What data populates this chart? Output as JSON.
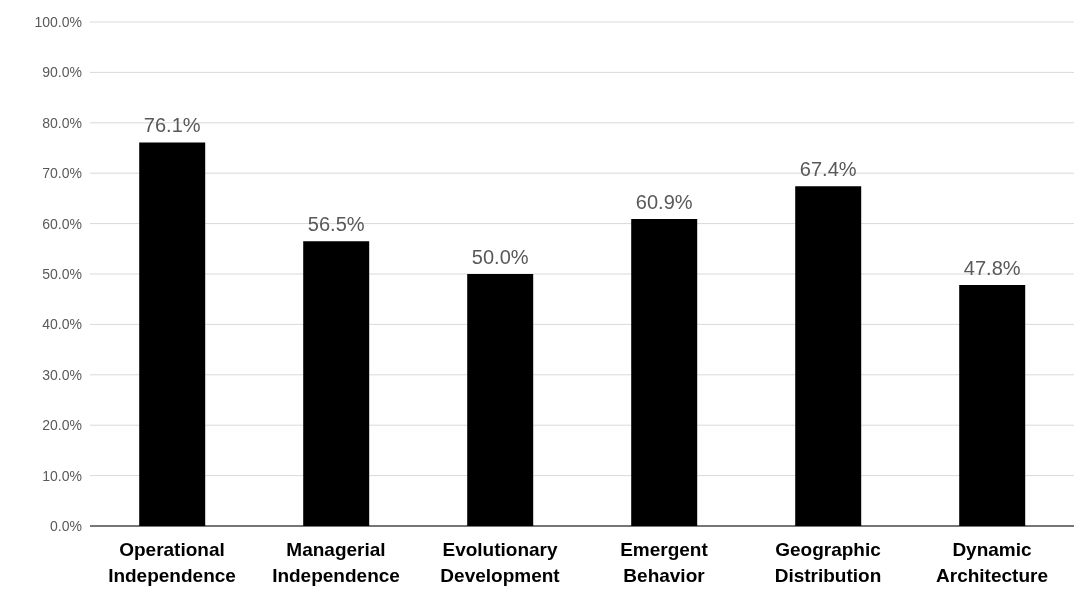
{
  "chart_data": {
    "type": "bar",
    "categories": [
      "Operational Independence",
      "Managerial Independence",
      "Evolutionary Development",
      "Emergent Behavior",
      "Geographic Distribution",
      "Dynamic Architecture"
    ],
    "values": [
      76.1,
      56.5,
      50.0,
      60.9,
      67.4,
      47.8
    ],
    "value_labels": [
      "76.1%",
      "56.5%",
      "50.0%",
      "60.9%",
      "67.4%",
      "47.8%"
    ],
    "color": "#000000",
    "ylim": [
      0,
      100
    ],
    "yticks": [
      {
        "value": 0,
        "label": "0.0%"
      },
      {
        "value": 10,
        "label": "10.0%"
      },
      {
        "value": 20,
        "label": "20.0%"
      },
      {
        "value": 30,
        "label": "30.0%"
      },
      {
        "value": 40,
        "label": "40.0%"
      },
      {
        "value": 50,
        "label": "50.0%"
      },
      {
        "value": 60,
        "label": "60.0%"
      },
      {
        "value": 70,
        "label": "70.0%"
      },
      {
        "value": 80,
        "label": "80.0%"
      },
      {
        "value": 90,
        "label": "90.0%"
      },
      {
        "value": 100,
        "label": "100.0%"
      }
    ],
    "grid": "y"
  }
}
